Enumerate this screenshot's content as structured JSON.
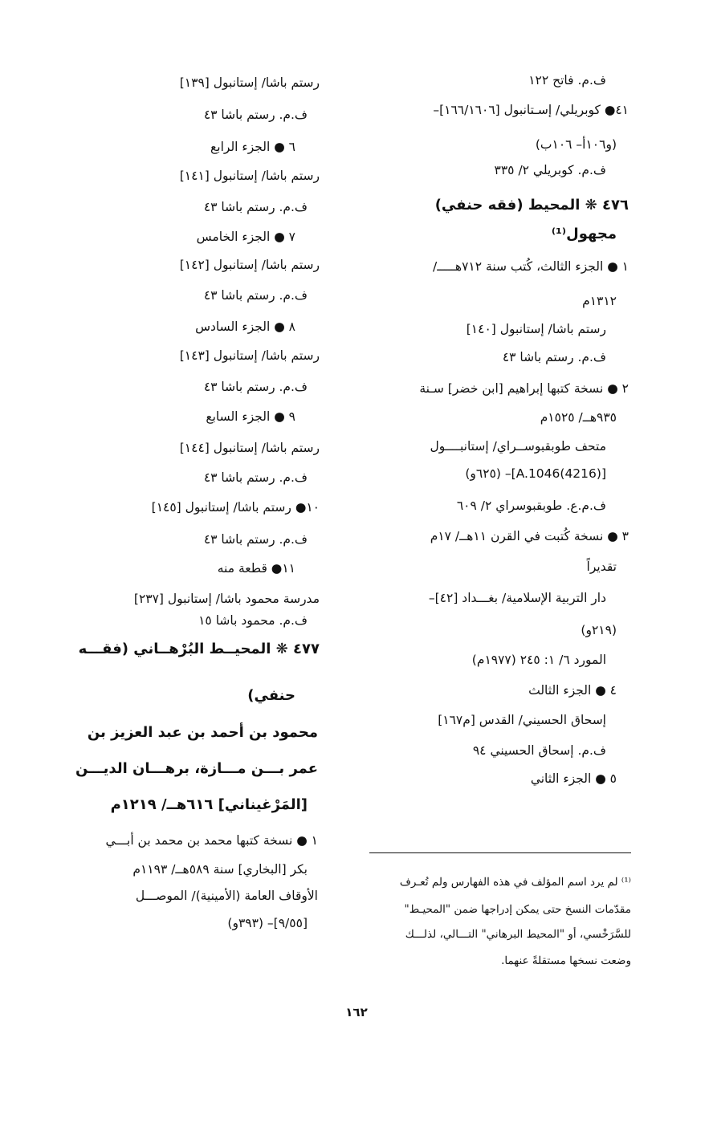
{
  "right_column": [
    {
      "text": "ف.م. فاتح ١٢٢",
      "bold": false
    },
    {
      "text": "٤١● كوبريلي/ إسـتانبول [١٦٦/١٦٠٦]–",
      "bold": false
    },
    {
      "text": "(و١٠٦أ– ١٠٦ب)",
      "bold": false
    },
    {
      "text": "ف.م. كوبريلي ٢/ ٣٣٥",
      "bold": false
    },
    {
      "text": "٤٧٦ ❋ المحيط  (فقه حنفي)",
      "bold": true
    },
    {
      "text": "مجهول⁽¹⁾",
      "bold": true
    },
    {
      "text": "١ ● الجزء الثالث، كُتب سنة ٧١٢هـــــ/",
      "bold": false
    },
    {
      "text": "١٣١٢م",
      "bold": false
    },
    {
      "text": "رستم باشا/ إستانبول [١٤٠]",
      "bold": false
    },
    {
      "text": "ف.م. رستم باشا ٤٣",
      "bold": false
    },
    {
      "text": "٢ ● نسخة كتبها إبراهيم [ابن خضر] سـنة",
      "bold": false
    },
    {
      "text": "٩٣٥هــ/ ١٥٢٥م",
      "bold": false
    },
    {
      "text": "متحف طوبقبوســراي/ إستانبــــول",
      "bold": false
    },
    {
      "text": "[A.1046(4216)]– (٦٢٥و)",
      "bold": false
    },
    {
      "text": "ف.م.ع. طوبقبوسراي ٢/ ٦٠٩",
      "bold": false
    },
    {
      "text": "٣ ● نسخة كُتبت في القرن ١١هــ/ ١٧م",
      "bold": false
    },
    {
      "text": "تقديراً",
      "bold": false
    },
    {
      "text": "دار التربية الإسلامية/ بغـــداد [٤٢]–",
      "bold": false
    },
    {
      "text": "(٢١٩و)",
      "bold": false
    },
    {
      "text": "المورد ٦/ ١: ٢٤٥ (١٩٧٧م)",
      "bold": false
    },
    {
      "text": "٤ ● الجزء الثالث",
      "bold": false
    },
    {
      "text": "إسحاق الحسيني/ القدس [م١٦٧]",
      "bold": false
    },
    {
      "text": "ف.م. إسحاق الحسيني ٩٤",
      "bold": false
    },
    {
      "text": "٥ ● الجزء الثاني",
      "bold": false
    }
  ],
  "left_column": [
    {
      "text": "رستم باشا/ إستانبول [١٣٩]",
      "bold": false
    },
    {
      "text": "ف.م. رستم باشا ٤٣",
      "bold": false
    },
    {
      "text": "٦ ● الجزء الرابع",
      "bold": false
    },
    {
      "text": "رستم باشا/ إستانبول [١٤١]",
      "bold": false
    },
    {
      "text": "ف.م. رستم باشا ٤٣",
      "bold": false
    },
    {
      "text": "٧ ● الجزء الخامس",
      "bold": false
    },
    {
      "text": "رستم باشا/ إستانبول [١٤٢]",
      "bold": false
    },
    {
      "text": "ف.م. رستم باشا ٤٣",
      "bold": false
    },
    {
      "text": "٨ ● الجزء السادس",
      "bold": false
    },
    {
      "text": "رستم باشا/ إستانبول [١٤٣]",
      "bold": false
    },
    {
      "text": "ف.م. رستم باشا ٤٣",
      "bold": false
    },
    {
      "text": "٩ ● الجزء السابع",
      "bold": false
    },
    {
      "text": "رستم باشا/ إستانبول [١٤٤]",
      "bold": false
    },
    {
      "text": "ف.م. رستم باشا ٤٣",
      "bold": false
    },
    {
      "text": "١٠● رستم باشا/ إستانبول [١٤٥]",
      "bold": false
    },
    {
      "text": "ف.م. رستم باشا ٤٣",
      "bold": false
    },
    {
      "text": "١١● قطعة منه",
      "bold": false
    },
    {
      "text": "مدرسة محمود باشا/ إستانبول [٢٣٧]",
      "bold": false
    },
    {
      "text": "ف.م. محمود باشا ١٥",
      "bold": false
    },
    {
      "text": "٤٧٧ ❋ المحيــط البُرْهــاني  (فقـــه",
      "bold": true
    },
    {
      "text": "حنفي)",
      "bold": true
    },
    {
      "text": "محمود بن أحمد بن عبد العزيز بن",
      "bold": true
    },
    {
      "text": "عمر بـــن مـــازة، برهـــان الديـــن",
      "bold": true
    },
    {
      "text": "[المَرْغيناني] ٦١٦هــ/ ١٢١٩م",
      "bold": true
    },
    {
      "text": "١ ● نسخة كتبها محمد بن محمد بن أبـــي",
      "bold": false
    },
    {
      "text": "بكر [البخاري] سنة ٥٨٩هــ/ ١١٩٣م",
      "bold": false
    },
    {
      "text": "الأوقاف العامة (الأمينية)/ الموصـــل",
      "bold": false
    },
    {
      "text": "[٩/٥٥]– (٣٩٣و)",
      "bold": false
    }
  ],
  "footnote": [
    "⁽¹⁾ لم يرد اسم المؤلف في هذه الفهارس ولم تُعـرف",
    "مقدّمات النسخ حتى يمكن إدراجها ضمن \"المحيـط\"",
    "للسَّرَخْسي، أو \"المحيط البرهاني\" التـــالي، لذلـــك",
    "وضعت نسخها مستقلةً عنهما."
  ],
  "page_number": "١٦٢"
}
